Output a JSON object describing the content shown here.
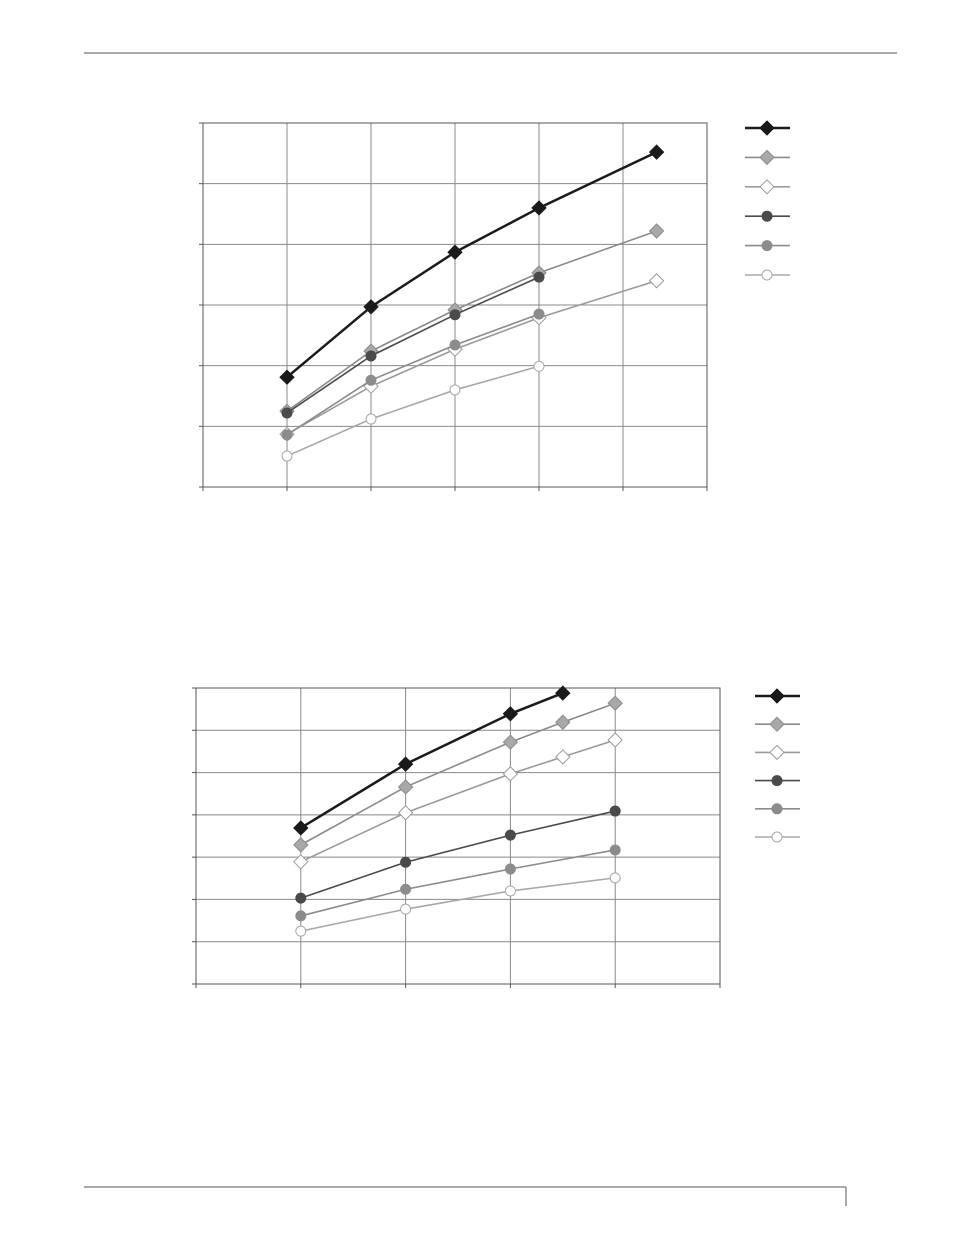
{
  "chart_data": [
    {
      "type": "line",
      "grid": true,
      "xlim": [
        0,
        6
      ],
      "xticks": [
        0,
        1,
        2,
        3,
        4,
        5,
        6
      ],
      "ylim": [
        0,
        6
      ],
      "yticks": [
        0,
        1,
        2,
        3,
        4,
        5,
        6
      ],
      "x": [
        1,
        2,
        3,
        4,
        5.4
      ],
      "series": [
        {
          "color": "#1a1a1a",
          "fill": "#1a1a1a",
          "marker": "diamond",
          "values": [
            1.81,
            2.97,
            3.87,
            4.6,
            5.52
          ]
        },
        {
          "color": "#8a8a8a",
          "fill": "#a8a8a8",
          "marker": "diamond",
          "values": [
            1.25,
            2.24,
            2.92,
            3.53,
            4.22
          ]
        },
        {
          "color": "#9a9a9a",
          "fill": "#ffffff",
          "marker": "diamond",
          "values": [
            0.87,
            1.66,
            2.27,
            2.79,
            3.4
          ]
        },
        {
          "color": "#4a4a4a",
          "fill": "#4a4a4a",
          "marker": "circle",
          "values": [
            1.22,
            2.16,
            2.84,
            3.46,
            null
          ]
        },
        {
          "color": "#8c8c8c",
          "fill": "#8c8c8c",
          "marker": "circle",
          "values": [
            0.86,
            1.76,
            2.34,
            2.85,
            null
          ]
        },
        {
          "color": "#a8a8a8",
          "fill": "#ffffff",
          "marker": "circle",
          "values": [
            0.51,
            1.12,
            1.6,
            1.99,
            null
          ]
        }
      ]
    },
    {
      "type": "line",
      "grid": true,
      "xlim": [
        0,
        5
      ],
      "xticks": [
        0,
        1,
        2,
        3,
        4,
        5
      ],
      "ylim": [
        0,
        7
      ],
      "yticks": [
        0,
        1,
        2,
        3,
        4,
        5,
        6,
        7
      ],
      "series": [
        {
          "color": "#1a1a1a",
          "fill": "#1a1a1a",
          "marker": "diamond",
          "x": [
            1,
            2,
            3,
            3.5
          ],
          "values": [
            3.69,
            5.2,
            6.39,
            6.88
          ]
        },
        {
          "color": "#8a8a8a",
          "fill": "#a8a8a8",
          "marker": "diamond",
          "x": [
            1,
            2,
            3,
            3.5,
            4
          ],
          "values": [
            3.29,
            4.66,
            5.72,
            6.19,
            6.64
          ]
        },
        {
          "color": "#9a9a9a",
          "fill": "#ffffff",
          "marker": "diamond",
          "x": [
            1,
            2,
            3,
            3.5,
            4
          ],
          "values": [
            2.89,
            4.05,
            4.97,
            5.37,
            5.77
          ]
        },
        {
          "color": "#4a4a4a",
          "fill": "#4a4a4a",
          "marker": "circle",
          "x": [
            1,
            2,
            3,
            4
          ],
          "values": [
            2.03,
            2.88,
            3.52,
            4.09
          ]
        },
        {
          "color": "#8c8c8c",
          "fill": "#8c8c8c",
          "marker": "circle",
          "x": [
            1,
            2,
            3,
            4
          ],
          "values": [
            1.61,
            2.24,
            2.72,
            3.17
          ]
        },
        {
          "color": "#a8a8a8",
          "fill": "#ffffff",
          "marker": "circle",
          "x": [
            1,
            2,
            3,
            4
          ],
          "values": [
            1.25,
            1.77,
            2.2,
            2.51
          ]
        }
      ]
    }
  ]
}
